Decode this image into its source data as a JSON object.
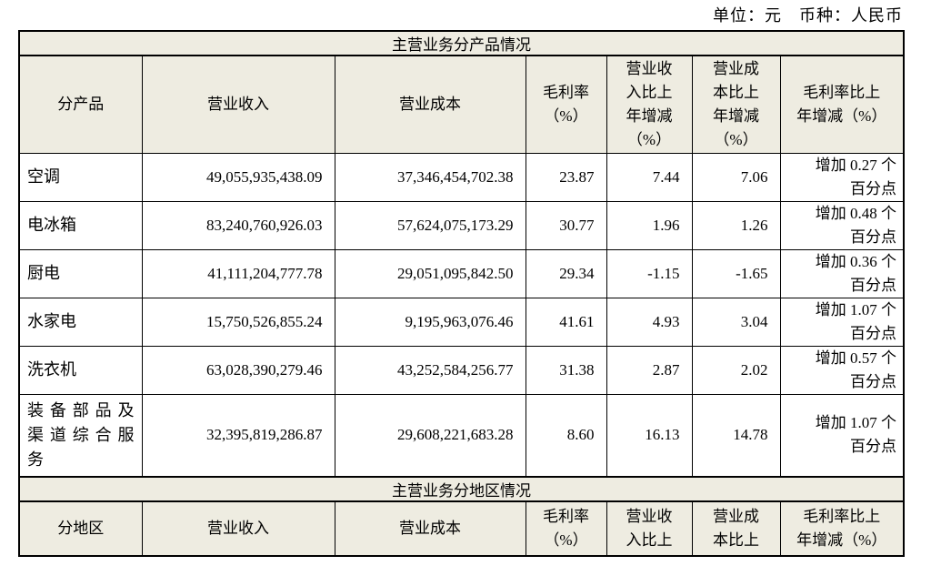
{
  "page": {
    "unit_note": "单位：元　币种：人民币"
  },
  "colors": {
    "header_bg": "#eeece1",
    "border": "#000000",
    "page_bg": "#ffffff"
  },
  "table": {
    "section1_title": "主营业务分产品情况",
    "headers1": {
      "product": "分产品",
      "revenue": "营业收入",
      "cost": "营业成本",
      "margin": "毛利率\n（%）",
      "revenue_change": "营业收\n入比上\n年增减\n（%）",
      "cost_change": "营业成\n本比上\n年增减\n（%）",
      "margin_change": "毛利率比上\n年增减（%）"
    },
    "rows": [
      {
        "product": "空调",
        "revenue": "49,055,935,438.09",
        "cost": "37,346,454,702.38",
        "margin": "23.87",
        "revenue_change": "7.44",
        "cost_change": "7.06",
        "margin_change": "增加 0.27 个\n百分点"
      },
      {
        "product": "电冰箱",
        "revenue": "83,240,760,926.03",
        "cost": "57,624,075,173.29",
        "margin": "30.77",
        "revenue_change": "1.96",
        "cost_change": "1.26",
        "margin_change": "增加 0.48 个\n百分点"
      },
      {
        "product": "厨电",
        "revenue": "41,111,204,777.78",
        "cost": "29,051,095,842.50",
        "margin": "29.34",
        "revenue_change": "-1.15",
        "cost_change": "-1.65",
        "margin_change": "增加 0.36 个\n百分点"
      },
      {
        "product": "水家电",
        "revenue": "15,750,526,855.24",
        "cost": "9,195,963,076.46",
        "margin": "41.61",
        "revenue_change": "4.93",
        "cost_change": "3.04",
        "margin_change": "增加 1.07 个\n百分点"
      },
      {
        "product": "洗衣机",
        "revenue": "63,028,390,279.46",
        "cost": "43,252,584,256.77",
        "margin": "31.38",
        "revenue_change": "2.87",
        "cost_change": "2.02",
        "margin_change": "增加 0.57 个\n百分点"
      },
      {
        "product": "装备部品及\n渠道综合服\n务",
        "revenue": "32,395,819,286.87",
        "cost": "29,608,221,683.28",
        "margin": "8.60",
        "revenue_change": "16.13",
        "cost_change": "14.78",
        "margin_change": "增加 1.07 个\n百分点"
      }
    ],
    "section2_title": "主营业务分地区情况",
    "headers2": {
      "region": "分地区",
      "revenue": "营业收入",
      "cost": "营业成本",
      "margin": "毛利率\n（%）",
      "revenue_change": "营业收\n入比上",
      "cost_change": "营业成\n本比上",
      "margin_change": "毛利率比上\n年增减（%）"
    }
  }
}
